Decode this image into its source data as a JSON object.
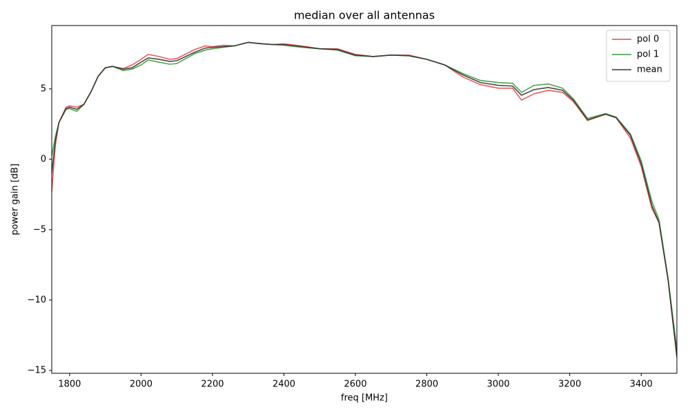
{
  "chart_data": {
    "type": "line",
    "title": "median over all antennas",
    "xlabel": "freq [MHz]",
    "ylabel": "power gain [dB]",
    "x": [
      1750,
      1760,
      1770,
      1790,
      1800,
      1820,
      1840,
      1860,
      1880,
      1900,
      1920,
      1950,
      1975,
      2000,
      2020,
      2050,
      2080,
      2100,
      2150,
      2180,
      2200,
      2230,
      2260,
      2300,
      2340,
      2370,
      2400,
      2450,
      2500,
      2550,
      2600,
      2650,
      2700,
      2750,
      2800,
      2850,
      2900,
      2950,
      3000,
      3040,
      3065,
      3100,
      3140,
      3180,
      3210,
      3250,
      3300,
      3330,
      3370,
      3400,
      3430,
      3450,
      3475,
      3500
    ],
    "series": [
      {
        "name": "pol 0",
        "color": "#e8474a",
        "values": [
          -2.3,
          1.0,
          2.6,
          3.7,
          3.8,
          3.7,
          3.9,
          4.8,
          5.9,
          6.5,
          6.6,
          6.45,
          6.7,
          7.1,
          7.45,
          7.3,
          7.1,
          7.15,
          7.8,
          8.05,
          8.0,
          8.1,
          8.05,
          8.3,
          8.2,
          8.15,
          8.2,
          8.05,
          7.85,
          7.85,
          7.45,
          7.3,
          7.4,
          7.4,
          7.1,
          6.7,
          5.85,
          5.3,
          5.05,
          5.05,
          4.2,
          4.65,
          4.9,
          4.75,
          4.1,
          2.75,
          3.2,
          2.95,
          1.5,
          -0.5,
          -3.5,
          -4.5,
          -8.5,
          -14.1
        ]
      },
      {
        "name": "pol 1",
        "color": "#3a9a3a",
        "values": [
          0.2,
          1.6,
          2.6,
          3.55,
          3.6,
          3.4,
          3.9,
          4.8,
          5.9,
          6.5,
          6.6,
          6.3,
          6.4,
          6.7,
          7.05,
          6.9,
          6.75,
          6.8,
          7.5,
          7.75,
          7.85,
          7.95,
          8.05,
          8.3,
          8.2,
          8.15,
          8.1,
          7.95,
          7.85,
          7.75,
          7.35,
          7.3,
          7.4,
          7.35,
          7.1,
          6.7,
          6.1,
          5.6,
          5.45,
          5.4,
          4.75,
          5.25,
          5.35,
          5.05,
          4.3,
          2.9,
          3.25,
          3.0,
          1.8,
          -0.1,
          -3.0,
          -4.3,
          -8.4,
          -13.5
        ]
      },
      {
        "name": "mean",
        "color": "#333333",
        "values": [
          -1.0,
          1.3,
          2.6,
          3.6,
          3.7,
          3.55,
          3.9,
          4.8,
          5.9,
          6.5,
          6.6,
          6.4,
          6.5,
          6.9,
          7.2,
          7.1,
          6.95,
          7.0,
          7.6,
          7.9,
          7.95,
          8.0,
          8.05,
          8.3,
          8.2,
          8.15,
          8.15,
          8.0,
          7.85,
          7.8,
          7.4,
          7.3,
          7.4,
          7.35,
          7.1,
          6.7,
          6.0,
          5.45,
          5.25,
          5.2,
          4.55,
          4.95,
          5.1,
          4.9,
          4.2,
          2.8,
          3.2,
          2.95,
          1.7,
          -0.3,
          -3.3,
          -4.5,
          -8.5,
          -14.0
        ]
      }
    ],
    "xlim": [
      1750,
      3500
    ],
    "ylim": [
      -15.2,
      9.5
    ],
    "xticks": [
      1800,
      2000,
      2200,
      2400,
      2600,
      2800,
      3000,
      3200,
      3400
    ],
    "yticks": [
      {
        "value": -15,
        "label": "−15"
      },
      {
        "value": -10,
        "label": "−10"
      },
      {
        "value": -5,
        "label": "−5"
      },
      0,
      5
    ],
    "legend": "upper right"
  }
}
